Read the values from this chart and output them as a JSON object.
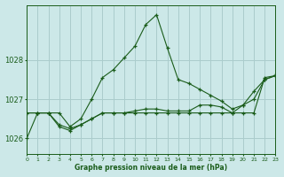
{
  "title": "Graphe pression niveau de la mer (hPa)",
  "bg_color": "#cce8e8",
  "grid_color": "#aacccc",
  "line_color": "#1a5c1a",
  "x_min": 0,
  "x_max": 23,
  "y_min": 1025.6,
  "y_max": 1029.4,
  "yticks": [
    1026,
    1027,
    1028
  ],
  "xtick_labels": [
    "0",
    "1",
    "2",
    "3",
    "4",
    "5",
    "6",
    "7",
    "8",
    "9",
    "10",
    "11",
    "12",
    "13",
    "14",
    "15",
    "16",
    "17",
    "18",
    "19",
    "20",
    "21",
    "22",
    "23"
  ],
  "series": [
    [
      1026.65,
      1026.65,
      1026.65,
      1026.35,
      1026.25,
      1026.35,
      1026.5,
      1026.65,
      1026.65,
      1026.65,
      1026.65,
      1026.65,
      1026.65,
      1026.65,
      1026.65,
      1026.65,
      1026.65,
      1026.65,
      1026.65,
      1026.65,
      1026.65,
      1026.65,
      1027.55,
      1027.6
    ],
    [
      1026.0,
      1026.65,
      1026.65,
      1026.65,
      1026.3,
      1026.5,
      1027.0,
      1027.55,
      1027.75,
      1028.05,
      1028.35,
      1028.9,
      1029.15,
      1028.3,
      1027.5,
      1027.4,
      1027.25,
      1027.1,
      1026.95,
      1026.75,
      1026.85,
      1027.2,
      1027.5,
      1027.6
    ],
    [
      1026.65,
      1026.65,
      1026.65,
      1026.3,
      1026.2,
      1026.35,
      1026.5,
      1026.65,
      1026.65,
      1026.65,
      1026.7,
      1026.75,
      1026.75,
      1026.7,
      1026.7,
      1026.7,
      1026.85,
      1026.85,
      1026.8,
      1026.65,
      1026.85,
      1027.0,
      1027.5,
      1027.6
    ]
  ]
}
